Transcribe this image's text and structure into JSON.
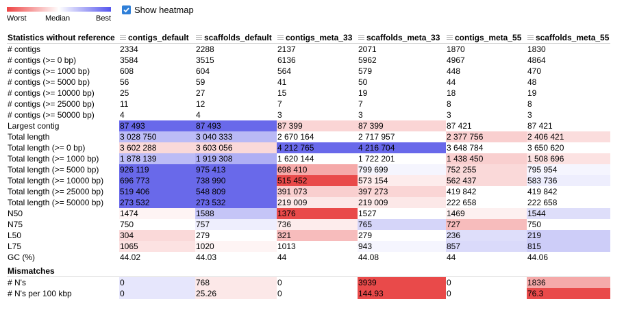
{
  "legend": {
    "worst": "Worst",
    "median": "Median",
    "best": "Best"
  },
  "heatmap_toggle": {
    "label": "Show heatmap",
    "checked": true
  },
  "colors": {
    "worst": "#ee4444",
    "median": "#ffffff",
    "best": "#5555ee"
  },
  "table": {
    "title": "Statistics without reference",
    "columns": [
      "contigs_default",
      "scaffolds_default",
      "contigs_meta_33",
      "scaffolds_meta_33",
      "contigs_meta_55",
      "scaffolds_meta_55"
    ],
    "rows": [
      {
        "metric": "# contigs",
        "values": [
          "2334",
          "2288",
          "2137",
          "2071",
          "1870",
          "1830"
        ],
        "heat": [
          null,
          null,
          null,
          null,
          null,
          null
        ]
      },
      {
        "metric": "# contigs (>= 0 bp)",
        "values": [
          "3584",
          "3515",
          "6136",
          "5962",
          "4967",
          "4864"
        ],
        "heat": [
          null,
          null,
          null,
          null,
          null,
          null
        ]
      },
      {
        "metric": "# contigs (>= 1000 bp)",
        "values": [
          "608",
          "604",
          "564",
          "579",
          "448",
          "470"
        ],
        "heat": [
          null,
          null,
          null,
          null,
          null,
          null
        ]
      },
      {
        "metric": "# contigs (>= 5000 bp)",
        "values": [
          "56",
          "59",
          "41",
          "50",
          "44",
          "48"
        ],
        "heat": [
          null,
          null,
          null,
          null,
          null,
          null
        ]
      },
      {
        "metric": "# contigs (>= 10000 bp)",
        "values": [
          "25",
          "27",
          "15",
          "19",
          "18",
          "19"
        ],
        "heat": [
          null,
          null,
          null,
          null,
          null,
          null
        ]
      },
      {
        "metric": "# contigs (>= 25000 bp)",
        "values": [
          "11",
          "12",
          "7",
          "7",
          "8",
          "8"
        ],
        "heat": [
          null,
          null,
          null,
          null,
          null,
          null
        ]
      },
      {
        "metric": "# contigs (>= 50000 bp)",
        "values": [
          "4",
          "4",
          "3",
          "3",
          "3",
          "3"
        ],
        "heat": [
          null,
          null,
          null,
          null,
          null,
          null
        ]
      },
      {
        "metric": "Largest contig",
        "values": [
          "87 493",
          "87 493",
          "87 399",
          "87 399",
          "87 421",
          "87 421"
        ],
        "heat": [
          0.9,
          0.9,
          -0.22,
          -0.22,
          0.0,
          0.0
        ]
      },
      {
        "metric": "Total length",
        "values": [
          "3 028 750",
          "3 040 333",
          "2 670 164",
          "2 717 957",
          "2 377 756",
          "2 406 421"
        ],
        "heat": [
          0.4,
          0.42,
          0.0,
          0.0,
          -0.25,
          -0.18
        ]
      },
      {
        "metric": "Total length (>= 0 bp)",
        "values": [
          "3 602 288",
          "3 603 056",
          "4 212 765",
          "4 216 704",
          "3 648 784",
          "3 650 620"
        ],
        "heat": [
          -0.2,
          -0.2,
          0.9,
          0.9,
          0.0,
          0.0
        ]
      },
      {
        "metric": "Total length (>= 1000 bp)",
        "values": [
          "1 878 139",
          "1 919 308",
          "1 620 144",
          "1 722 201",
          "1 438 450",
          "1 508 696"
        ],
        "heat": [
          0.4,
          0.48,
          0.0,
          0.0,
          -0.25,
          -0.15
        ]
      },
      {
        "metric": "Total length (>= 5000 bp)",
        "values": [
          "926 119",
          "975 413",
          "698 410",
          "799 699",
          "752 255",
          "795 954"
        ],
        "heat": [
          0.9,
          0.9,
          -0.45,
          0.06,
          -0.2,
          0.06
        ]
      },
      {
        "metric": "Total length (>= 10000 bp)",
        "values": [
          "696 773",
          "738 990",
          "515 452",
          "573 154",
          "562 437",
          "583 736"
        ],
        "heat": [
          0.9,
          0.9,
          -0.95,
          -0.1,
          -0.2,
          0.1
        ]
      },
      {
        "metric": "Total length (>= 25000 bp)",
        "values": [
          "519 406",
          "548 809",
          "391 073",
          "397 273",
          "419 842",
          "419 842"
        ],
        "heat": [
          0.9,
          0.9,
          -0.25,
          -0.22,
          0.0,
          0.0
        ]
      },
      {
        "metric": "Total length (>= 50000 bp)",
        "values": [
          "273 532",
          "273 532",
          "219 009",
          "219 009",
          "222 658",
          "222 658"
        ],
        "heat": [
          0.9,
          0.9,
          -0.12,
          -0.12,
          0.0,
          0.0
        ]
      },
      {
        "metric": "N50",
        "values": [
          "1474",
          "1588",
          "1376",
          "1527",
          "1469",
          "1544"
        ],
        "heat": [
          -0.06,
          0.35,
          -0.95,
          0.0,
          -0.08,
          0.2
        ]
      },
      {
        "metric": "N75",
        "values": [
          "750",
          "757",
          "736",
          "765",
          "727",
          "750"
        ],
        "heat": [
          0.0,
          0.1,
          -0.1,
          0.25,
          -0.35,
          0.0
        ]
      },
      {
        "metric": "L50",
        "values": [
          "304",
          "279",
          "321",
          "279",
          "236",
          "219"
        ],
        "heat": [
          -0.2,
          0.0,
          -0.35,
          0.0,
          0.2,
          0.3
        ]
      },
      {
        "metric": "L75",
        "values": [
          "1065",
          "1020",
          "1013",
          "943",
          "857",
          "815"
        ],
        "heat": [
          -0.15,
          -0.06,
          0.0,
          0.06,
          0.22,
          0.3
        ]
      },
      {
        "metric": "GC (%)",
        "values": [
          "44.02",
          "44.03",
          "44",
          "44.08",
          "44",
          "44.06"
        ],
        "heat": [
          null,
          null,
          null,
          null,
          null,
          null
        ]
      }
    ],
    "section2": {
      "title": "Mismatches",
      "rows": [
        {
          "metric": "# N's",
          "values": [
            "0",
            "768",
            "0",
            "3939",
            "0",
            "1836"
          ],
          "heat": [
            0.15,
            -0.12,
            0.0,
            -0.95,
            0.0,
            -0.45
          ]
        },
        {
          "metric": "# N's per 100 kbp",
          "values": [
            "0",
            "25.26",
            "0",
            "144.93",
            "0",
            "76.3"
          ],
          "heat": [
            0.15,
            -0.12,
            0.0,
            -0.95,
            0.0,
            -0.95
          ]
        }
      ]
    }
  }
}
